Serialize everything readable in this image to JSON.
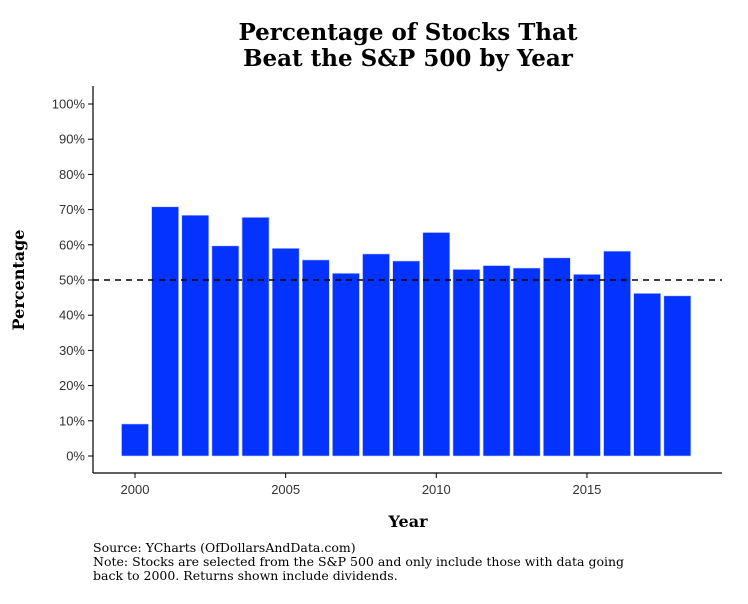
{
  "chart_data": {
    "type": "bar",
    "title_lines": [
      "Percentage of Stocks That",
      "Beat the S&P 500 by Year"
    ],
    "xlabel": "Year",
    "ylabel": "Percentage",
    "categories": [
      2000,
      2001,
      2002,
      2003,
      2004,
      2005,
      2006,
      2007,
      2008,
      2009,
      2010,
      2011,
      2012,
      2013,
      2014,
      2015,
      2016,
      2017,
      2018
    ],
    "values": [
      9.1,
      70.8,
      68.4,
      59.7,
      67.8,
      59.0,
      55.7,
      51.9,
      57.4,
      55.4,
      63.5,
      53.0,
      54.1,
      53.4,
      56.3,
      51.6,
      58.2,
      46.2,
      45.5
    ],
    "ylim": [
      0,
      100
    ],
    "yticks": [
      "0%",
      "10%",
      "20%",
      "30%",
      "40%",
      "50%",
      "60%",
      "70%",
      "80%",
      "90%",
      "100%"
    ],
    "xticks": [
      "2000",
      "2005",
      "2010",
      "2015"
    ],
    "reference_line": {
      "value": 50,
      "style": "dashed"
    },
    "bar_color": "#0433ff",
    "grid": false,
    "notes": [
      "Source:  YCharts (OfDollarsAndData.com)",
      "Note: Stocks are selected from the S&P 500 and only include those with data going",
      "back to 2000. Returns shown include dividends."
    ]
  }
}
